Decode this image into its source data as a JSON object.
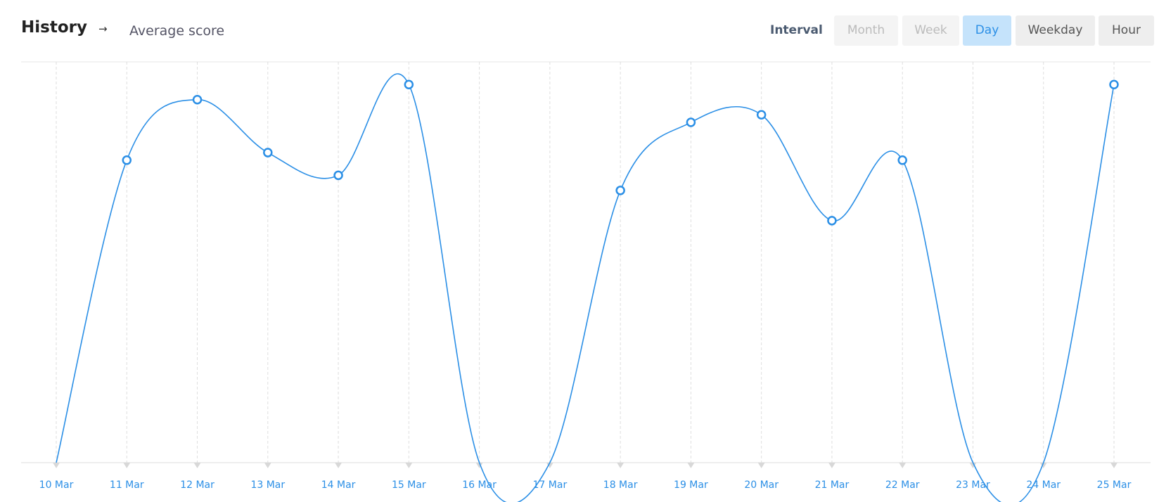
{
  "header": {
    "title": "History",
    "separator": "→",
    "subtitle": "Average score",
    "interval_label": "Interval",
    "intervals": [
      {
        "label": "Month",
        "state": "disabled"
      },
      {
        "label": "Week",
        "state": "disabled"
      },
      {
        "label": "Day",
        "state": "active"
      },
      {
        "label": "Weekday",
        "state": "default"
      },
      {
        "label": "Hour",
        "state": "default"
      }
    ]
  },
  "chart_data": {
    "type": "line",
    "categories": [
      "10 Mar",
      "11 Mar",
      "12 Mar",
      "13 Mar",
      "14 Mar",
      "15 Mar",
      "16 Mar",
      "17 Mar",
      "18 Mar",
      "19 Mar",
      "20 Mar",
      "21 Mar",
      "22 Mar",
      "23 Mar",
      "24 Mar",
      "25 Mar"
    ],
    "values": [
      0,
      4.0,
      4.8,
      4.1,
      3.8,
      5.0,
      0,
      0,
      3.6,
      4.5,
      4.6,
      3.2,
      4.0,
      0,
      0,
      5.0
    ],
    "color": "#2b8fe6",
    "ylim": [
      0,
      5.3
    ],
    "grid": true
  }
}
